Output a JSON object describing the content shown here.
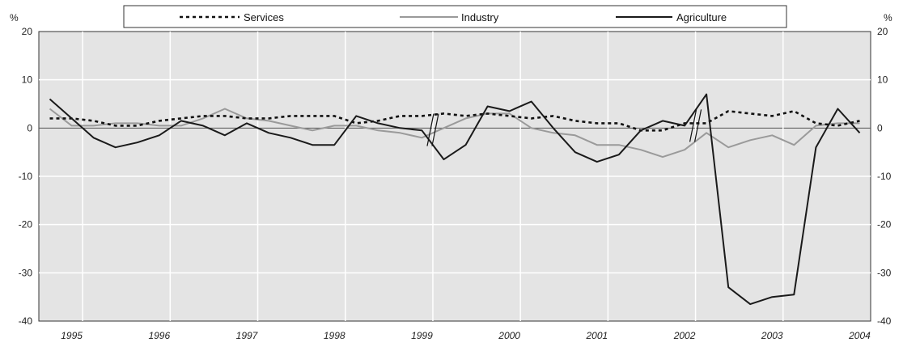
{
  "chart_data": {
    "type": "line",
    "y_unit_left": "%",
    "y_unit_right": "%",
    "ylim": [
      -40,
      20
    ],
    "yticks": [
      20,
      10,
      0,
      -10,
      -20,
      -30,
      -40
    ],
    "year_labels": [
      "1995",
      "1996",
      "1997",
      "1998",
      "1999",
      "2000",
      "2001",
      "2002",
      "2003",
      "2004"
    ],
    "x": [
      "1995Q1",
      "1995Q2",
      "1995Q3",
      "1995Q4",
      "1996Q1",
      "1996Q2",
      "1996Q3",
      "1996Q4",
      "1997Q1",
      "1997Q2",
      "1997Q3",
      "1997Q4",
      "1998Q1",
      "1998Q2",
      "1998Q3",
      "1998Q4",
      "1999Q1",
      "1999Q2",
      "1999Q3",
      "1999Q4",
      "2000Q1",
      "2000Q2",
      "2000Q3",
      "2000Q4",
      "2001Q1",
      "2001Q2",
      "2001Q3",
      "2001Q4",
      "2002Q1",
      "2002Q2",
      "2002Q3",
      "2002Q4",
      "2003Q1",
      "2003Q2",
      "2003Q3",
      "2003Q4",
      "2004Q1",
      "2004Q2"
    ],
    "series_breaks": [
      "1999Q2",
      "2002Q2"
    ],
    "grid": true,
    "legend_position": "top",
    "series": [
      {
        "name": "Services",
        "style": "dotted",
        "color": "#111111",
        "values": [
          2.0,
          2.0,
          1.5,
          0.5,
          0.5,
          1.5,
          2.0,
          2.5,
          2.5,
          2.0,
          2.0,
          2.5,
          2.5,
          2.5,
          1.0,
          1.5,
          2.5,
          2.5,
          3.0,
          2.5,
          3.0,
          2.5,
          2.0,
          2.5,
          1.5,
          1.0,
          1.0,
          -0.5,
          -0.5,
          1.0,
          1.0,
          3.5,
          3.0,
          2.5,
          3.5,
          1.0,
          0.5,
          1.5
        ]
      },
      {
        "name": "Industry",
        "style": "solid",
        "color": "#9a9a9a",
        "values": [
          4.0,
          0.5,
          0.5,
          1.0,
          1.0,
          0.5,
          0.5,
          2.0,
          4.0,
          2.0,
          1.5,
          0.5,
          -0.5,
          0.5,
          0.5,
          -0.5,
          -1.0,
          -2.0,
          0.0,
          2.0,
          3.0,
          3.0,
          0.0,
          -1.0,
          -1.5,
          -3.5,
          -3.5,
          -4.5,
          -6.0,
          -4.5,
          -1.0,
          -4.0,
          -2.5,
          -1.5,
          -3.5,
          0.5,
          1.0,
          1.0
        ]
      },
      {
        "name": "Agriculture",
        "style": "solid",
        "color": "#1a1a1a",
        "values": [
          6.0,
          2.0,
          -2.0,
          -4.0,
          -3.0,
          -1.5,
          1.5,
          0.5,
          -1.5,
          1.0,
          -1.0,
          -2.0,
          -3.5,
          -3.5,
          2.5,
          1.0,
          0.0,
          -0.5,
          -6.5,
          -3.5,
          4.5,
          3.5,
          5.5,
          0.0,
          -5.0,
          -7.0,
          -5.5,
          -0.5,
          1.5,
          0.5,
          7.0,
          -33.0,
          -36.5,
          -35.0,
          -34.5,
          -4.0,
          4.0,
          -1.0
        ]
      }
    ]
  }
}
